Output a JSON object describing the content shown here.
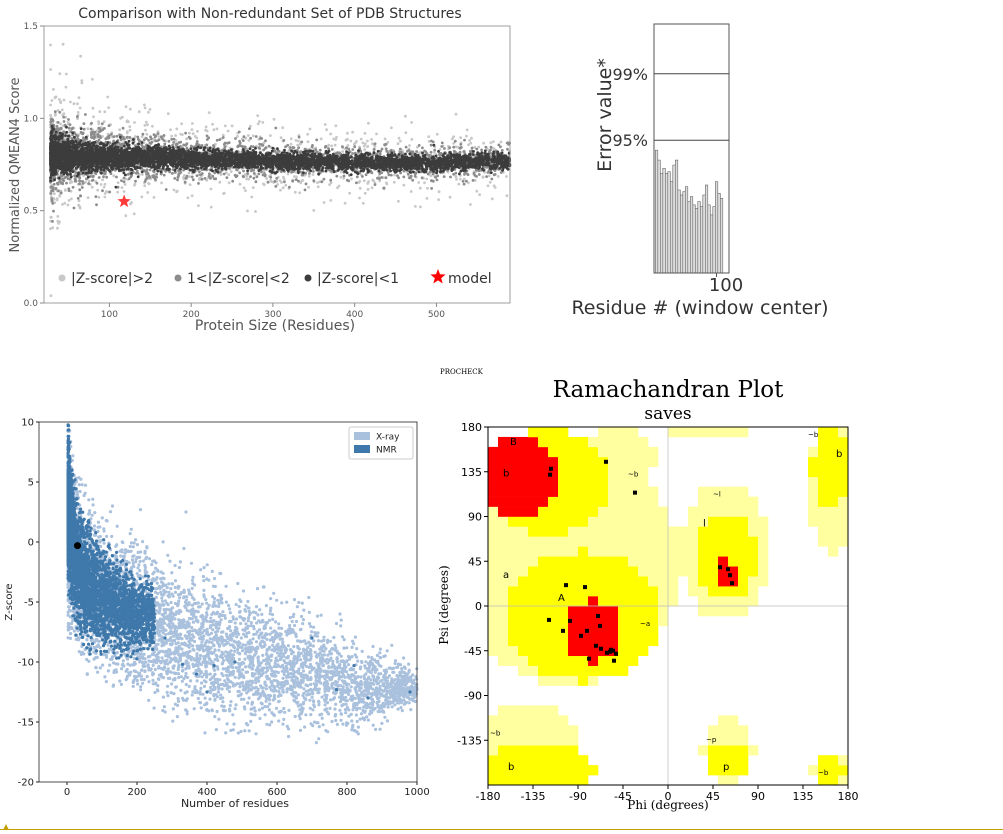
{
  "chart_data": [
    {
      "type": "scatter",
      "title": "Comparison with Non-redundant Set of PDB Structures",
      "xlabel": "Protein Size (Residues)",
      "ylabel": "Normalized QMEAN4 Score",
      "xlim": [
        20,
        590
      ],
      "ylim": [
        0.0,
        1.5
      ],
      "x_ticks": [
        100,
        200,
        300,
        400,
        500
      ],
      "y_ticks": [
        0.0,
        0.5,
        1.0,
        1.5
      ],
      "y_tick_labels": [
        "0.0",
        "0.5",
        "1.0",
        "1.5"
      ],
      "legend": [
        {
          "label": "|Z-score|>2",
          "color": "#c8c8c8",
          "marker": "circle"
        },
        {
          "label": "1<|Z-score|<2",
          "color": "#8c8c8c",
          "marker": "circle"
        },
        {
          "label": "|Z-score|<1",
          "color": "#3c3c3c",
          "marker": "circle"
        },
        {
          "label": "model",
          "color": "#ff0000",
          "marker": "star"
        }
      ],
      "legend_position": "bottom",
      "model_point": {
        "x": 118,
        "y": 0.55
      },
      "band_trend": [
        {
          "x": 30,
          "center": 0.8
        },
        {
          "x": 100,
          "center": 0.79
        },
        {
          "x": 200,
          "center": 0.78
        },
        {
          "x": 300,
          "center": 0.77
        },
        {
          "x": 400,
          "center": 0.76
        },
        {
          "x": 500,
          "center": 0.76
        },
        {
          "x": 590,
          "center": 0.77
        }
      ],
      "grid": false
    },
    {
      "type": "bar",
      "ylabel": "Error value*",
      "xlabel": "Residue # (window center)",
      "threshold_lines": [
        {
          "label": "99%",
          "value": 99
        },
        {
          "label": "95%",
          "value": 95
        }
      ],
      "x_tick_label": "100",
      "x_tick_value": 100,
      "x_range": [
        50,
        110
      ],
      "y_range": [
        87,
        102
      ],
      "bar_start": 52,
      "bar_step": 2,
      "values": [
        94.4,
        93.8,
        93.0,
        93.3,
        93.0,
        93.1,
        92.5,
        93.5,
        93.8,
        92.0,
        91.7,
        91.9,
        92.2,
        91.3,
        91.6,
        91.1,
        90.9,
        91.3,
        91.0,
        91.7,
        92.3,
        91.1,
        90.5,
        91.0,
        92.5,
        91.8,
        91.5
      ],
      "bar_color": "#dddddd"
    },
    {
      "type": "scatter",
      "xlabel": "Number of residues",
      "ylabel": "Z-score",
      "xlim": [
        -80,
        1000
      ],
      "ylim": [
        -20,
        10
      ],
      "x_ticks": [
        0,
        200,
        400,
        600,
        800,
        1000
      ],
      "y_ticks": [
        10,
        5,
        0,
        -5,
        -10,
        -15,
        -20
      ],
      "legend": [
        {
          "label": "X-ray",
          "color": "#aac1dd"
        },
        {
          "label": "NMR",
          "color": "#3f78aa"
        }
      ],
      "legend_position": "top-right",
      "model_point": {
        "x": 30,
        "y": -0.3
      },
      "xray_envelope": [
        {
          "x": 5,
          "upper": 8.5,
          "lower": -7
        },
        {
          "x": 50,
          "upper": 3.5,
          "lower": -10
        },
        {
          "x": 100,
          "upper": 1.5,
          "lower": -11
        },
        {
          "x": 200,
          "upper": 0,
          "lower": -12.5
        },
        {
          "x": 300,
          "upper": -1.5,
          "lower": -14
        },
        {
          "x": 400,
          "upper": -3,
          "lower": -15
        },
        {
          "x": 500,
          "upper": -4,
          "lower": -15.5
        },
        {
          "x": 600,
          "upper": -5,
          "lower": -15.5
        },
        {
          "x": 700,
          "upper": -6,
          "lower": -16
        },
        {
          "x": 800,
          "upper": -8,
          "lower": -16
        },
        {
          "x": 900,
          "upper": -9.5,
          "lower": -15
        },
        {
          "x": 1000,
          "upper": -10.5,
          "lower": -13.5
        }
      ],
      "nmr_envelope": [
        {
          "x": 3,
          "upper": 9.8,
          "lower": -4
        },
        {
          "x": 30,
          "upper": 3,
          "lower": -8
        },
        {
          "x": 60,
          "upper": 1.5,
          "lower": -9
        },
        {
          "x": 100,
          "upper": 0,
          "lower": -9
        },
        {
          "x": 150,
          "upper": -1.5,
          "lower": -9.5
        },
        {
          "x": 200,
          "upper": -2.5,
          "lower": -9.5
        },
        {
          "x": 250,
          "upper": -3.5,
          "lower": -9
        }
      ]
    },
    {
      "type": "scatter",
      "header": "PROCHECK",
      "title": "Ramachandran Plot",
      "subtitle": "saves",
      "xlabel": "Phi (degrees)",
      "ylabel": "Psi (degrees)",
      "xlim": [
        -180,
        180
      ],
      "ylim": [
        -180,
        180
      ],
      "x_ticks": [
        -180,
        -135,
        -90,
        -45,
        0,
        45,
        90,
        135,
        180
      ],
      "y_ticks": [
        180,
        135,
        90,
        45,
        0,
        -45,
        -90,
        -135
      ],
      "colors": {
        "most_favoured": "#ff0000",
        "allowed": "#ffff00",
        "generous": "#ffffa0",
        "background": "#ffffff"
      },
      "region_labels": [
        {
          "text": "B",
          "phi": -158,
          "psi": 162
        },
        {
          "text": "b",
          "phi": -165,
          "psi": 130
        },
        {
          "text": "~b",
          "phi": -40,
          "psi": 130
        },
        {
          "text": "~l",
          "phi": 45,
          "psi": 110
        },
        {
          "text": "l",
          "phi": 35,
          "psi": 80
        },
        {
          "text": "a",
          "phi": -165,
          "psi": 28
        },
        {
          "text": "A",
          "phi": -110,
          "psi": 5
        },
        {
          "text": "~a",
          "phi": -28,
          "psi": -20
        },
        {
          "text": "~b",
          "phi": 140,
          "psi": 170
        },
        {
          "text": "b",
          "phi": 168,
          "psi": 150
        },
        {
          "text": "~b",
          "phi": -178,
          "psi": -130
        },
        {
          "text": "b",
          "phi": -160,
          "psi": -165
        },
        {
          "text": "~p",
          "phi": 38,
          "psi": -137
        },
        {
          "text": "p",
          "phi": 55,
          "psi": -165
        },
        {
          "text": "~b",
          "phi": 150,
          "psi": -170
        }
      ],
      "residues": [
        {
          "phi": -118,
          "psi": 132
        },
        {
          "phi": -117,
          "psi": 138
        },
        {
          "phi": -62,
          "psi": 145
        },
        {
          "phi": -33,
          "psi": 114
        },
        {
          "phi": 52,
          "psi": 39
        },
        {
          "phi": 60,
          "psi": 37
        },
        {
          "phi": 62,
          "psi": 31
        },
        {
          "phi": 64,
          "psi": 23
        },
        {
          "phi": -102,
          "psi": 21
        },
        {
          "phi": -83,
          "psi": 19
        },
        {
          "phi": -119,
          "psi": -14
        },
        {
          "phi": -105,
          "psi": -25
        },
        {
          "phi": -98,
          "psi": -15
        },
        {
          "phi": -87,
          "psi": -30
        },
        {
          "phi": -81,
          "psi": -25
        },
        {
          "phi": -70,
          "psi": -10
        },
        {
          "phi": -68,
          "psi": -20
        },
        {
          "phi": -72,
          "psi": -40
        },
        {
          "phi": -67,
          "psi": -43
        },
        {
          "phi": -61,
          "psi": -47
        },
        {
          "phi": -58,
          "psi": -46
        },
        {
          "phi": -55,
          "psi": -45
        },
        {
          "phi": -52,
          "psi": -48
        },
        {
          "phi": -57,
          "psi": -44
        },
        {
          "phi": -79,
          "psi": -53
        },
        {
          "phi": -54,
          "psi": -55
        }
      ]
    }
  ]
}
